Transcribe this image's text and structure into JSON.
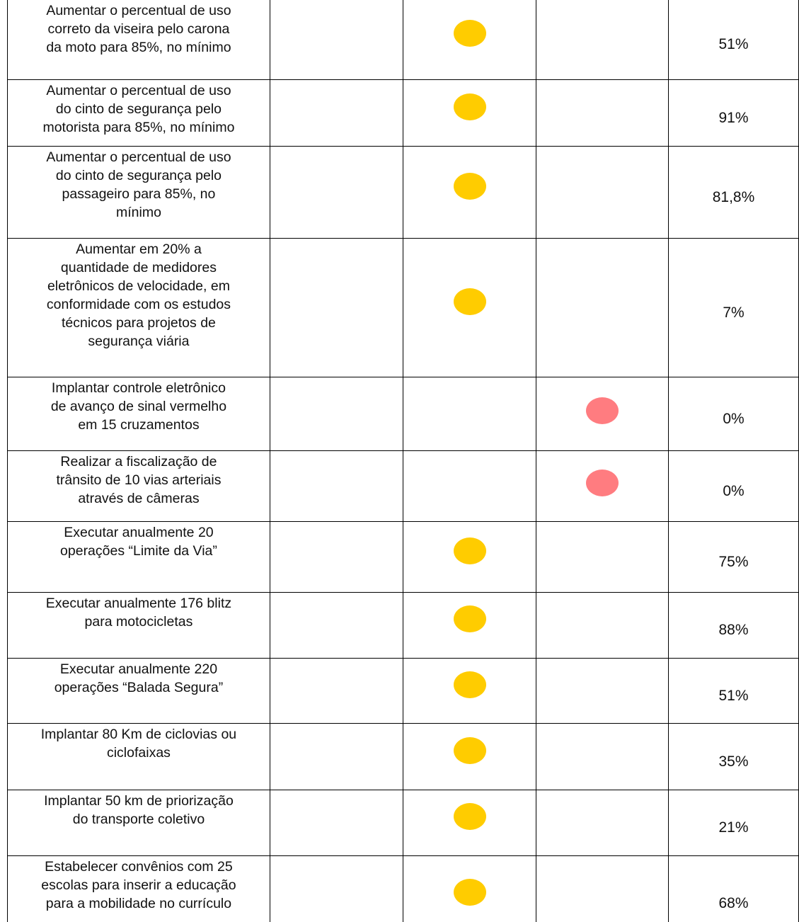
{
  "table": {
    "rows": [
      [
        [
          "Aumentar o percentual de uso",
          "correto da viseira pelo carona",
          "da moto para 85%, no mínimo"
        ],
        null,
        {
          "color": "#ffcc00"
        },
        null,
        "51%"
      ],
      [
        [
          "Aumentar o percentual de uso",
          "do cinto de segurança pelo",
          "motorista para 85%, no mínimo"
        ],
        null,
        {
          "color": "#ffcc00"
        },
        null,
        "91%"
      ],
      [
        [
          "Aumentar o percentual de uso",
          "do cinto de segurança pelo",
          "passageiro para 85%, no",
          "mínimo"
        ],
        null,
        {
          "color": "#ffcc00"
        },
        null,
        "81,8%"
      ],
      [
        [
          "Aumentar em 20% a",
          "quantidade de medidores",
          "eletrônicos de velocidade, em",
          "conformidade com os estudos",
          "técnicos para projetos de",
          "segurança viária"
        ],
        null,
        {
          "color": "#ffcc00"
        },
        null,
        "7%"
      ],
      [
        [
          "Implantar controle eletrônico",
          "de avanço de sinal vermelho",
          "em 15 cruzamentos"
        ],
        null,
        null,
        {
          "color": "#ff7c80"
        },
        "0%"
      ],
      [
        [
          "Realizar a fiscalização de",
          "trânsito de 10 vias arteriais",
          "através de câmeras"
        ],
        null,
        null,
        {
          "color": "#ff7c80"
        },
        "0%"
      ],
      [
        [
          "Executar anualmente 20",
          "operações “Limite da Via”"
        ],
        null,
        {
          "color": "#ffcc00"
        },
        null,
        "75%"
      ],
      [
        [
          "Executar anualmente 176 blitz",
          "para motocicletas"
        ],
        null,
        {
          "color": "#ffcc00"
        },
        null,
        "88%"
      ],
      [
        [
          "Executar anualmente 220",
          "operações “Balada Segura”"
        ],
        null,
        {
          "color": "#ffcc00"
        },
        null,
        "51%"
      ],
      [
        [
          "Implantar 80 Km de ciclovias ou",
          "ciclofaixas"
        ],
        null,
        {
          "color": "#ffcc00"
        },
        null,
        "35%"
      ],
      [
        [
          "Implantar 50 km de priorização",
          "do transporte coletivo"
        ],
        null,
        {
          "color": "#ffcc00"
        },
        null,
        "21%"
      ],
      [
        [
          "Estabelecer convênios com 25",
          "escolas para inserir a educação",
          "para a mobilidade no currículo"
        ],
        null,
        {
          "color": "#ffcc00"
        },
        null,
        "68%"
      ]
    ]
  }
}
